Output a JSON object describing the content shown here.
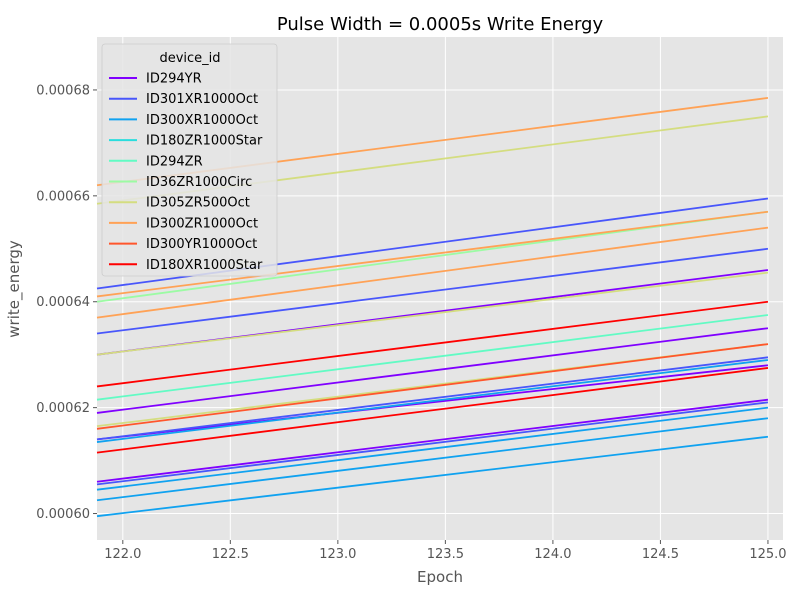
{
  "chart_data": {
    "type": "line",
    "title": "Pulse Width = 0.0005s Write Energy",
    "xlabel": "Epoch",
    "ylabel": "write_energy",
    "xlim": [
      121.88,
      125.07
    ],
    "ylim": [
      0.000595,
      0.00069
    ],
    "x_ticks": [
      122.0,
      122.5,
      123.0,
      123.5,
      124.0,
      124.5,
      125.0
    ],
    "x_tick_labels": [
      "122.0",
      "122.5",
      "123.0",
      "123.5",
      "124.0",
      "124.5",
      "125.0"
    ],
    "y_ticks": [
      0.0006,
      0.00062,
      0.00064,
      0.00066,
      0.00068
    ],
    "y_tick_labels": [
      "0.00060",
      "0.00062",
      "0.00064",
      "0.00066",
      "0.00068"
    ],
    "grid": true,
    "legend": {
      "title": "device_id",
      "placement": "upper-left",
      "entries": [
        {
          "name": "ID294YR",
          "color": "#8000ff"
        },
        {
          "name": "ID301XR1000Oct",
          "color": "#4856fb"
        },
        {
          "name": "ID300XR1000Oct",
          "color": "#10a2f0"
        },
        {
          "name": "ID180ZR1000Star",
          "color": "#2adddd"
        },
        {
          "name": "ID294ZR",
          "color": "#62fbc4"
        },
        {
          "name": "ID36ZR1000Circ",
          "color": "#9cfba4"
        },
        {
          "name": "ID305ZR500Oct",
          "color": "#d4dd80"
        },
        {
          "name": "ID300ZR1000Oct",
          "color": "#ffa256"
        },
        {
          "name": "ID300YR1000Oct",
          "color": "#ff562c"
        },
        {
          "name": "ID180XR1000Star",
          "color": "#ff0000"
        }
      ]
    },
    "series": [
      {
        "color": "#8000ff",
        "x": [
          121.88,
          125.0
        ],
        "y": [
          0.000619,
          0.000635
        ]
      },
      {
        "color": "#8000ff",
        "x": [
          121.88,
          125.0
        ],
        "y": [
          0.000614,
          0.000628
        ]
      },
      {
        "color": "#8000ff",
        "x": [
          121.88,
          125.0
        ],
        "y": [
          0.000606,
          0.0006215
        ]
      },
      {
        "color": "#8000ff",
        "x": [
          121.88,
          125.0
        ],
        "y": [
          0.00063,
          0.000646
        ]
      },
      {
        "color": "#4856fb",
        "x": [
          121.88,
          125.0
        ],
        "y": [
          0.0006425,
          0.0006595
        ]
      },
      {
        "color": "#4856fb",
        "x": [
          121.88,
          125.0
        ],
        "y": [
          0.000634,
          0.00065
        ]
      },
      {
        "color": "#4856fb",
        "x": [
          121.88,
          125.0
        ],
        "y": [
          0.000614,
          0.0006295
        ]
      },
      {
        "color": "#4856fb",
        "x": [
          121.88,
          125.0
        ],
        "y": [
          0.0006055,
          0.000621
        ]
      },
      {
        "color": "#10a2f0",
        "x": [
          121.88,
          125.0
        ],
        "y": [
          0.0005995,
          0.0006145
        ]
      },
      {
        "color": "#10a2f0",
        "x": [
          121.88,
          125.0
        ],
        "y": [
          0.0006045,
          0.00062
        ]
      },
      {
        "color": "#10a2f0",
        "x": [
          121.88,
          125.0
        ],
        "y": [
          0.0006025,
          0.000618
        ]
      },
      {
        "color": "#10a2f0",
        "x": [
          121.88,
          125.0
        ],
        "y": [
          0.0006135,
          0.000629
        ]
      },
      {
        "color": "#62fbc4",
        "x": [
          121.88,
          125.0
        ],
        "y": [
          0.0006215,
          0.0006375
        ]
      },
      {
        "color": "#9cfba4",
        "x": [
          121.88,
          125.0
        ],
        "y": [
          0.00064,
          0.000657
        ]
      },
      {
        "color": "#d4dd80",
        "x": [
          121.88,
          125.0
        ],
        "y": [
          0.0006585,
          0.000675
        ]
      },
      {
        "color": "#d4dd80",
        "x": [
          121.88,
          125.0
        ],
        "y": [
          0.0006165,
          0.000632
        ]
      },
      {
        "color": "#d4dd80",
        "x": [
          121.88,
          125.0
        ],
        "y": [
          0.00063,
          0.0006455
        ]
      },
      {
        "color": "#ffa256",
        "x": [
          121.88,
          125.0
        ],
        "y": [
          0.000662,
          0.0006785
        ]
      },
      {
        "color": "#ffa256",
        "x": [
          121.88,
          125.0
        ],
        "y": [
          0.000641,
          0.000657
        ]
      },
      {
        "color": "#ffa256",
        "x": [
          121.88,
          125.0
        ],
        "y": [
          0.000637,
          0.000654
        ]
      },
      {
        "color": "#ff562c",
        "x": [
          121.88,
          125.0
        ],
        "y": [
          0.000616,
          0.000632
        ]
      },
      {
        "color": "#ff0000",
        "x": [
          121.88,
          125.0
        ],
        "y": [
          0.000624,
          0.00064
        ]
      },
      {
        "color": "#ff0000",
        "x": [
          121.88,
          125.0
        ],
        "y": [
          0.0006115,
          0.0006275
        ]
      }
    ]
  }
}
